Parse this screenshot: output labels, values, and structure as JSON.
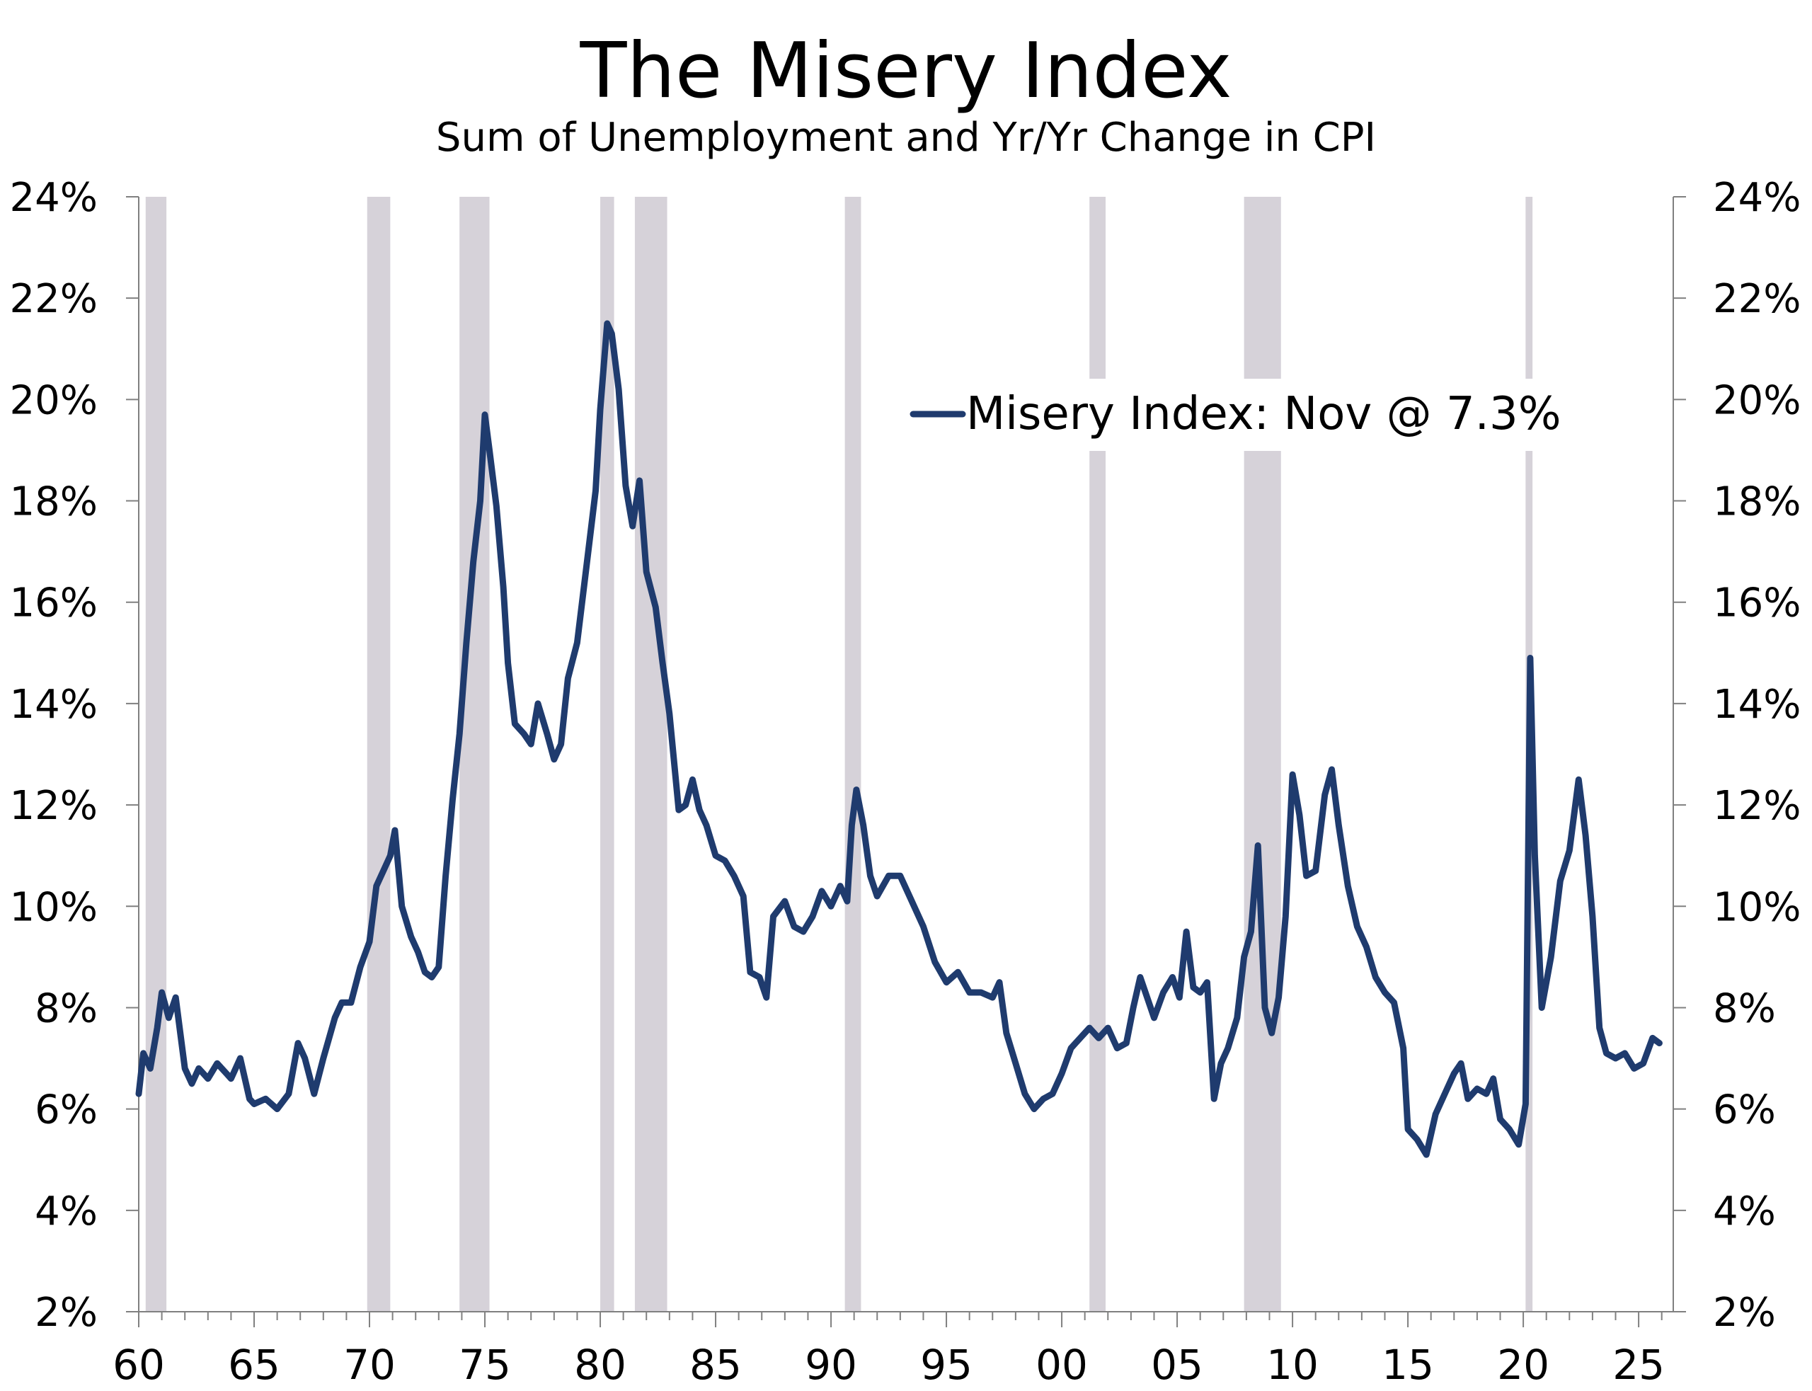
{
  "chart_data": {
    "type": "line",
    "title": "The Misery Index",
    "subtitle": "Sum of Unemployment and Yr/Yr Change in CPI",
    "xlabel": "",
    "ylabel": "",
    "x_range": [
      1960,
      2026.5
    ],
    "ylim": [
      2,
      24
    ],
    "y_ticks": [
      2,
      4,
      6,
      8,
      10,
      12,
      14,
      16,
      18,
      20,
      22,
      24
    ],
    "y_tick_labels": [
      "2%",
      "4%",
      "6%",
      "8%",
      "10%",
      "12%",
      "14%",
      "16%",
      "18%",
      "20%",
      "22%",
      "24%"
    ],
    "x_ticks": [
      1960,
      1965,
      1970,
      1975,
      1980,
      1985,
      1990,
      1995,
      2000,
      2005,
      2010,
      2015,
      2020,
      2025
    ],
    "x_tick_labels": [
      "60",
      "65",
      "70",
      "75",
      "80",
      "85",
      "90",
      "95",
      "00",
      "05",
      "10",
      "15",
      "20",
      "25"
    ],
    "legend": {
      "label": "Misery Index: Nov @ 7.3%",
      "placement": "upper-right"
    },
    "recessions": [
      [
        1960.3,
        1961.2
      ],
      [
        1969.9,
        1970.9
      ],
      [
        1973.9,
        1975.2
      ],
      [
        1980.0,
        1980.6
      ],
      [
        1981.5,
        1982.9
      ],
      [
        1990.6,
        1991.3
      ],
      [
        2001.2,
        2001.9
      ],
      [
        2007.9,
        2009.5
      ],
      [
        2020.1,
        2020.4
      ]
    ],
    "colors": {
      "line": "#1f3b6e",
      "recession": "#d6d2d9",
      "axis": "#808080"
    },
    "series": [
      {
        "name": "Misery Index",
        "points": [
          [
            1960.0,
            6.3
          ],
          [
            1960.2,
            7.1
          ],
          [
            1960.5,
            6.8
          ],
          [
            1960.8,
            7.6
          ],
          [
            1961.0,
            8.3
          ],
          [
            1961.3,
            7.8
          ],
          [
            1961.6,
            8.2
          ],
          [
            1962.0,
            6.8
          ],
          [
            1962.3,
            6.5
          ],
          [
            1962.6,
            6.8
          ],
          [
            1963.0,
            6.6
          ],
          [
            1963.4,
            6.9
          ],
          [
            1963.8,
            6.7
          ],
          [
            1964.0,
            6.6
          ],
          [
            1964.4,
            7.0
          ],
          [
            1964.8,
            6.2
          ],
          [
            1965.0,
            6.1
          ],
          [
            1965.5,
            6.2
          ],
          [
            1966.0,
            6.0
          ],
          [
            1966.5,
            6.3
          ],
          [
            1966.9,
            7.3
          ],
          [
            1967.2,
            7.0
          ],
          [
            1967.6,
            6.3
          ],
          [
            1968.0,
            7.0
          ],
          [
            1968.5,
            7.8
          ],
          [
            1968.8,
            8.1
          ],
          [
            1969.2,
            8.1
          ],
          [
            1969.6,
            8.8
          ],
          [
            1970.0,
            9.3
          ],
          [
            1970.3,
            10.4
          ],
          [
            1970.6,
            10.7
          ],
          [
            1970.9,
            11.0
          ],
          [
            1971.1,
            11.5
          ],
          [
            1971.4,
            10.0
          ],
          [
            1971.8,
            9.4
          ],
          [
            1972.1,
            9.1
          ],
          [
            1972.4,
            8.7
          ],
          [
            1972.7,
            8.6
          ],
          [
            1973.0,
            8.8
          ],
          [
            1973.3,
            10.6
          ],
          [
            1973.6,
            12.1
          ],
          [
            1973.9,
            13.4
          ],
          [
            1974.2,
            15.2
          ],
          [
            1974.5,
            16.8
          ],
          [
            1974.8,
            18.0
          ],
          [
            1975.0,
            19.7
          ],
          [
            1975.2,
            19.0
          ],
          [
            1975.5,
            17.9
          ],
          [
            1975.8,
            16.3
          ],
          [
            1976.0,
            14.8
          ],
          [
            1976.3,
            13.6
          ],
          [
            1976.7,
            13.4
          ],
          [
            1977.0,
            13.2
          ],
          [
            1977.3,
            14.0
          ],
          [
            1977.7,
            13.4
          ],
          [
            1978.0,
            12.9
          ],
          [
            1978.3,
            13.2
          ],
          [
            1978.6,
            14.5
          ],
          [
            1979.0,
            15.2
          ],
          [
            1979.4,
            16.7
          ],
          [
            1979.8,
            18.2
          ],
          [
            1980.0,
            19.8
          ],
          [
            1980.3,
            21.5
          ],
          [
            1980.5,
            21.3
          ],
          [
            1980.8,
            20.2
          ],
          [
            1981.1,
            18.3
          ],
          [
            1981.4,
            17.5
          ],
          [
            1981.7,
            18.4
          ],
          [
            1982.0,
            16.6
          ],
          [
            1982.4,
            15.9
          ],
          [
            1982.7,
            14.8
          ],
          [
            1983.0,
            13.8
          ],
          [
            1983.4,
            11.9
          ],
          [
            1983.7,
            12.0
          ],
          [
            1984.0,
            12.5
          ],
          [
            1984.3,
            11.9
          ],
          [
            1984.6,
            11.6
          ],
          [
            1985.0,
            11.0
          ],
          [
            1985.4,
            10.9
          ],
          [
            1985.8,
            10.6
          ],
          [
            1986.2,
            10.2
          ],
          [
            1986.5,
            8.7
          ],
          [
            1986.9,
            8.6
          ],
          [
            1987.2,
            8.2
          ],
          [
            1987.5,
            9.8
          ],
          [
            1988.0,
            10.1
          ],
          [
            1988.4,
            9.6
          ],
          [
            1988.8,
            9.5
          ],
          [
            1989.2,
            9.8
          ],
          [
            1989.6,
            10.3
          ],
          [
            1990.0,
            10.0
          ],
          [
            1990.4,
            10.4
          ],
          [
            1990.7,
            10.1
          ],
          [
            1990.9,
            11.6
          ],
          [
            1991.1,
            12.3
          ],
          [
            1991.4,
            11.6
          ],
          [
            1991.7,
            10.6
          ],
          [
            1992.0,
            10.2
          ],
          [
            1992.5,
            10.6
          ],
          [
            1993.0,
            10.6
          ],
          [
            1993.5,
            10.1
          ],
          [
            1994.0,
            9.6
          ],
          [
            1994.5,
            8.9
          ],
          [
            1995.0,
            8.5
          ],
          [
            1995.5,
            8.7
          ],
          [
            1996.0,
            8.3
          ],
          [
            1996.5,
            8.3
          ],
          [
            1997.0,
            8.2
          ],
          [
            1997.3,
            8.5
          ],
          [
            1997.6,
            7.5
          ],
          [
            1998.0,
            6.9
          ],
          [
            1998.4,
            6.3
          ],
          [
            1998.8,
            6.0
          ],
          [
            1999.2,
            6.2
          ],
          [
            1999.6,
            6.3
          ],
          [
            2000.0,
            6.7
          ],
          [
            2000.4,
            7.2
          ],
          [
            2000.8,
            7.4
          ],
          [
            2001.2,
            7.6
          ],
          [
            2001.6,
            7.4
          ],
          [
            2002.0,
            7.6
          ],
          [
            2002.4,
            7.2
          ],
          [
            2002.8,
            7.3
          ],
          [
            2003.1,
            8.0
          ],
          [
            2003.4,
            8.6
          ],
          [
            2003.7,
            8.2
          ],
          [
            2004.0,
            7.8
          ],
          [
            2004.4,
            8.3
          ],
          [
            2004.8,
            8.6
          ],
          [
            2005.1,
            8.2
          ],
          [
            2005.4,
            9.5
          ],
          [
            2005.7,
            8.4
          ],
          [
            2006.0,
            8.3
          ],
          [
            2006.3,
            8.5
          ],
          [
            2006.6,
            6.2
          ],
          [
            2006.9,
            6.9
          ],
          [
            2007.2,
            7.2
          ],
          [
            2007.6,
            7.8
          ],
          [
            2007.9,
            9.0
          ],
          [
            2008.2,
            9.5
          ],
          [
            2008.5,
            11.2
          ],
          [
            2008.8,
            8.0
          ],
          [
            2009.1,
            7.5
          ],
          [
            2009.4,
            8.2
          ],
          [
            2009.7,
            9.8
          ],
          [
            2010.0,
            12.6
          ],
          [
            2010.3,
            11.8
          ],
          [
            2010.6,
            10.6
          ],
          [
            2011.0,
            10.7
          ],
          [
            2011.4,
            12.2
          ],
          [
            2011.7,
            12.7
          ],
          [
            2012.0,
            11.6
          ],
          [
            2012.4,
            10.4
          ],
          [
            2012.8,
            9.6
          ],
          [
            2013.2,
            9.2
          ],
          [
            2013.6,
            8.6
          ],
          [
            2014.0,
            8.3
          ],
          [
            2014.4,
            8.1
          ],
          [
            2014.8,
            7.2
          ],
          [
            2015.0,
            5.6
          ],
          [
            2015.4,
            5.4
          ],
          [
            2015.8,
            5.1
          ],
          [
            2016.2,
            5.9
          ],
          [
            2016.6,
            6.3
          ],
          [
            2017.0,
            6.7
          ],
          [
            2017.3,
            6.9
          ],
          [
            2017.6,
            6.2
          ],
          [
            2018.0,
            6.4
          ],
          [
            2018.4,
            6.3
          ],
          [
            2018.7,
            6.6
          ],
          [
            2019.0,
            5.8
          ],
          [
            2019.4,
            5.6
          ],
          [
            2019.8,
            5.3
          ],
          [
            2020.1,
            6.1
          ],
          [
            2020.3,
            14.9
          ],
          [
            2020.5,
            11.0
          ],
          [
            2020.8,
            8.0
          ],
          [
            2021.2,
            9.0
          ],
          [
            2021.6,
            10.5
          ],
          [
            2022.0,
            11.1
          ],
          [
            2022.4,
            12.5
          ],
          [
            2022.7,
            11.4
          ],
          [
            2023.0,
            9.8
          ],
          [
            2023.3,
            7.6
          ],
          [
            2023.6,
            7.1
          ],
          [
            2024.0,
            7.0
          ],
          [
            2024.4,
            7.1
          ],
          [
            2024.8,
            6.8
          ],
          [
            2025.2,
            6.9
          ],
          [
            2025.6,
            7.4
          ],
          [
            2025.9,
            7.3
          ]
        ]
      }
    ]
  }
}
